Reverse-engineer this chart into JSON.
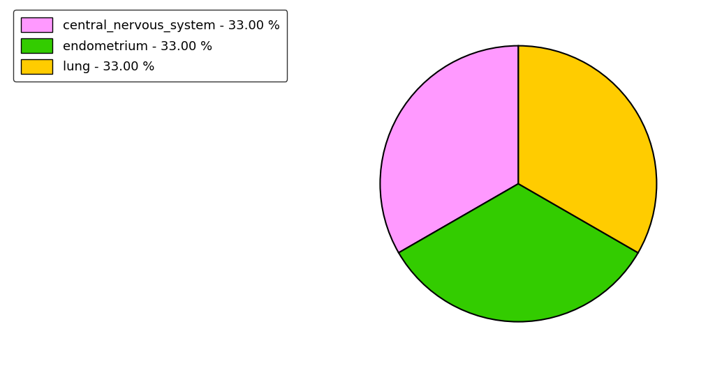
{
  "labels": [
    "central_nervous_system",
    "endometrium",
    "lung"
  ],
  "values": [
    33.0,
    33.0,
    33.0
  ],
  "colors": [
    "#ff99ff",
    "#33cc00",
    "#ffcc00"
  ],
  "legend_labels": [
    "central_nervous_system - 33.00 %",
    "endometrium - 33.00 %",
    "lung - 33.00 %"
  ],
  "background_color": "#ffffff",
  "figsize": [
    10.24,
    5.38
  ],
  "dpi": 100,
  "startangle": 90
}
